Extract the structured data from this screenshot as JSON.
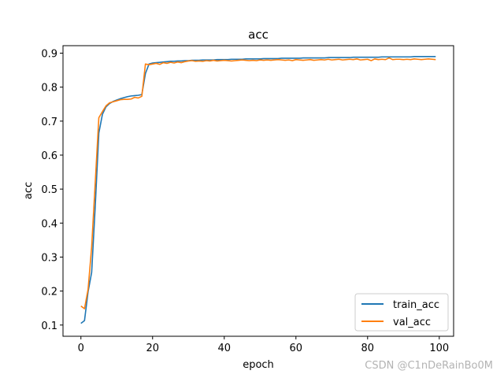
{
  "chart_data": {
    "type": "line",
    "title": "acc",
    "xlabel": "epoch",
    "ylabel": "acc",
    "xlim": [
      -5,
      104
    ],
    "ylim": [
      0.067,
      0.922
    ],
    "xticks": [
      0,
      20,
      40,
      60,
      80,
      100
    ],
    "yticks": [
      0.1,
      0.2,
      0.3,
      0.4,
      0.5,
      0.6,
      0.7,
      0.8,
      0.9
    ],
    "xtick_labels": [
      "0",
      "20",
      "40",
      "60",
      "80",
      "100"
    ],
    "ytick_labels": [
      "0.1",
      "0.2",
      "0.3",
      "0.4",
      "0.5",
      "0.6",
      "0.7",
      "0.8",
      "0.9"
    ],
    "grid": false,
    "legend_position": "lower-right",
    "x": [
      0,
      1,
      2,
      3,
      4,
      5,
      6,
      7,
      8,
      9,
      10,
      11,
      12,
      13,
      14,
      15,
      16,
      17,
      18,
      19,
      20,
      21,
      22,
      23,
      24,
      25,
      26,
      27,
      28,
      29,
      30,
      31,
      32,
      33,
      34,
      35,
      36,
      37,
      38,
      39,
      40,
      41,
      42,
      43,
      44,
      45,
      46,
      47,
      48,
      49,
      50,
      51,
      52,
      53,
      54,
      55,
      56,
      57,
      58,
      59,
      60,
      61,
      62,
      63,
      64,
      65,
      66,
      67,
      68,
      69,
      70,
      71,
      72,
      73,
      74,
      75,
      76,
      77,
      78,
      79,
      80,
      81,
      82,
      83,
      84,
      85,
      86,
      87,
      88,
      89,
      90,
      91,
      92,
      93,
      94,
      95,
      96,
      97,
      98,
      99
    ],
    "series": [
      {
        "name": "train_acc",
        "color": "#1f77b4",
        "values": [
          0.105,
          0.113,
          0.198,
          0.255,
          0.45,
          0.665,
          0.72,
          0.742,
          0.752,
          0.758,
          0.762,
          0.766,
          0.769,
          0.772,
          0.774,
          0.775,
          0.776,
          0.778,
          0.84,
          0.868,
          0.871,
          0.872,
          0.873,
          0.874,
          0.875,
          0.876,
          0.876,
          0.877,
          0.877,
          0.878,
          0.878,
          0.879,
          0.879,
          0.879,
          0.88,
          0.88,
          0.88,
          0.88,
          0.881,
          0.881,
          0.881,
          0.881,
          0.882,
          0.882,
          0.882,
          0.882,
          0.883,
          0.883,
          0.883,
          0.883,
          0.883,
          0.884,
          0.884,
          0.884,
          0.884,
          0.884,
          0.885,
          0.885,
          0.885,
          0.885,
          0.885,
          0.885,
          0.886,
          0.886,
          0.886,
          0.886,
          0.886,
          0.886,
          0.886,
          0.887,
          0.887,
          0.887,
          0.887,
          0.887,
          0.887,
          0.887,
          0.888,
          0.888,
          0.888,
          0.888,
          0.888,
          0.888,
          0.888,
          0.888,
          0.889,
          0.889,
          0.889,
          0.889,
          0.889,
          0.889,
          0.889,
          0.889,
          0.889,
          0.89,
          0.89,
          0.89,
          0.89,
          0.89,
          0.89,
          0.89
        ]
      },
      {
        "name": "val_acc",
        "color": "#ff7f0e",
        "values": [
          0.156,
          0.148,
          0.205,
          0.33,
          0.52,
          0.71,
          0.728,
          0.745,
          0.754,
          0.757,
          0.76,
          0.763,
          0.764,
          0.764,
          0.765,
          0.77,
          0.768,
          0.773,
          0.868,
          0.866,
          0.868,
          0.87,
          0.867,
          0.872,
          0.87,
          0.873,
          0.871,
          0.874,
          0.872,
          0.875,
          0.877,
          0.878,
          0.876,
          0.877,
          0.876,
          0.878,
          0.877,
          0.879,
          0.877,
          0.878,
          0.879,
          0.878,
          0.877,
          0.878,
          0.879,
          0.88,
          0.879,
          0.878,
          0.879,
          0.878,
          0.88,
          0.879,
          0.88,
          0.879,
          0.88,
          0.881,
          0.88,
          0.879,
          0.88,
          0.878,
          0.881,
          0.88,
          0.879,
          0.88,
          0.881,
          0.879,
          0.88,
          0.881,
          0.88,
          0.882,
          0.88,
          0.881,
          0.882,
          0.88,
          0.881,
          0.882,
          0.881,
          0.883,
          0.88,
          0.881,
          0.882,
          0.878,
          0.883,
          0.881,
          0.882,
          0.881,
          0.886,
          0.881,
          0.882,
          0.882,
          0.881,
          0.882,
          0.881,
          0.883,
          0.882,
          0.881,
          0.882,
          0.883,
          0.882,
          0.881
        ]
      }
    ]
  },
  "watermark": "CSDN @C1nDeRainBo0M"
}
